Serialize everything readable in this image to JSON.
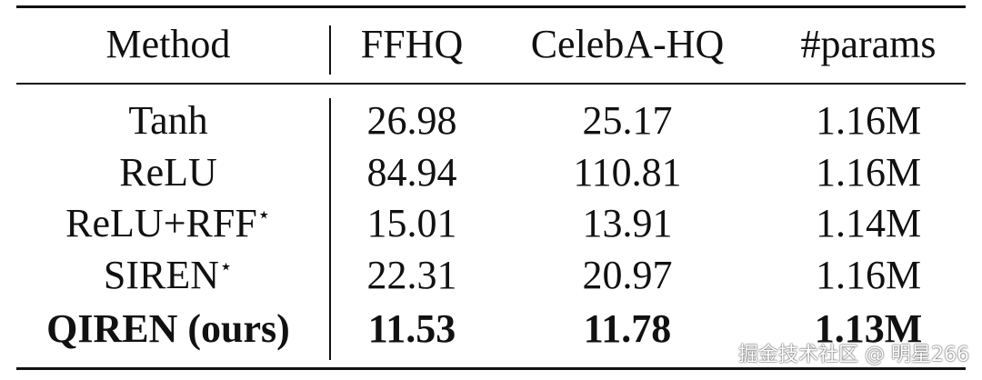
{
  "table": {
    "header": [
      "Method",
      "FFHQ",
      "CelebA-HQ",
      "#params"
    ],
    "rows": [
      [
        {
          "name": "Tanh"
        },
        "26.98",
        "25.17",
        "1.16M"
      ],
      [
        {
          "name": "ReLU"
        },
        "84.94",
        "110.81",
        "1.16M"
      ],
      [
        {
          "name": "ReLU+RFF",
          "sup": "⋆"
        },
        "15.01",
        "13.91",
        "1.14M"
      ],
      [
        {
          "name": "SIREN",
          "sup": "⋆"
        },
        "22.31",
        "20.97",
        "1.16M"
      ],
      [
        {
          "name": "QIREN (ours)"
        },
        "11.53",
        "11.78",
        "1.13M"
      ]
    ]
  },
  "watermark": "掘金技术社区 @ 明星266"
}
